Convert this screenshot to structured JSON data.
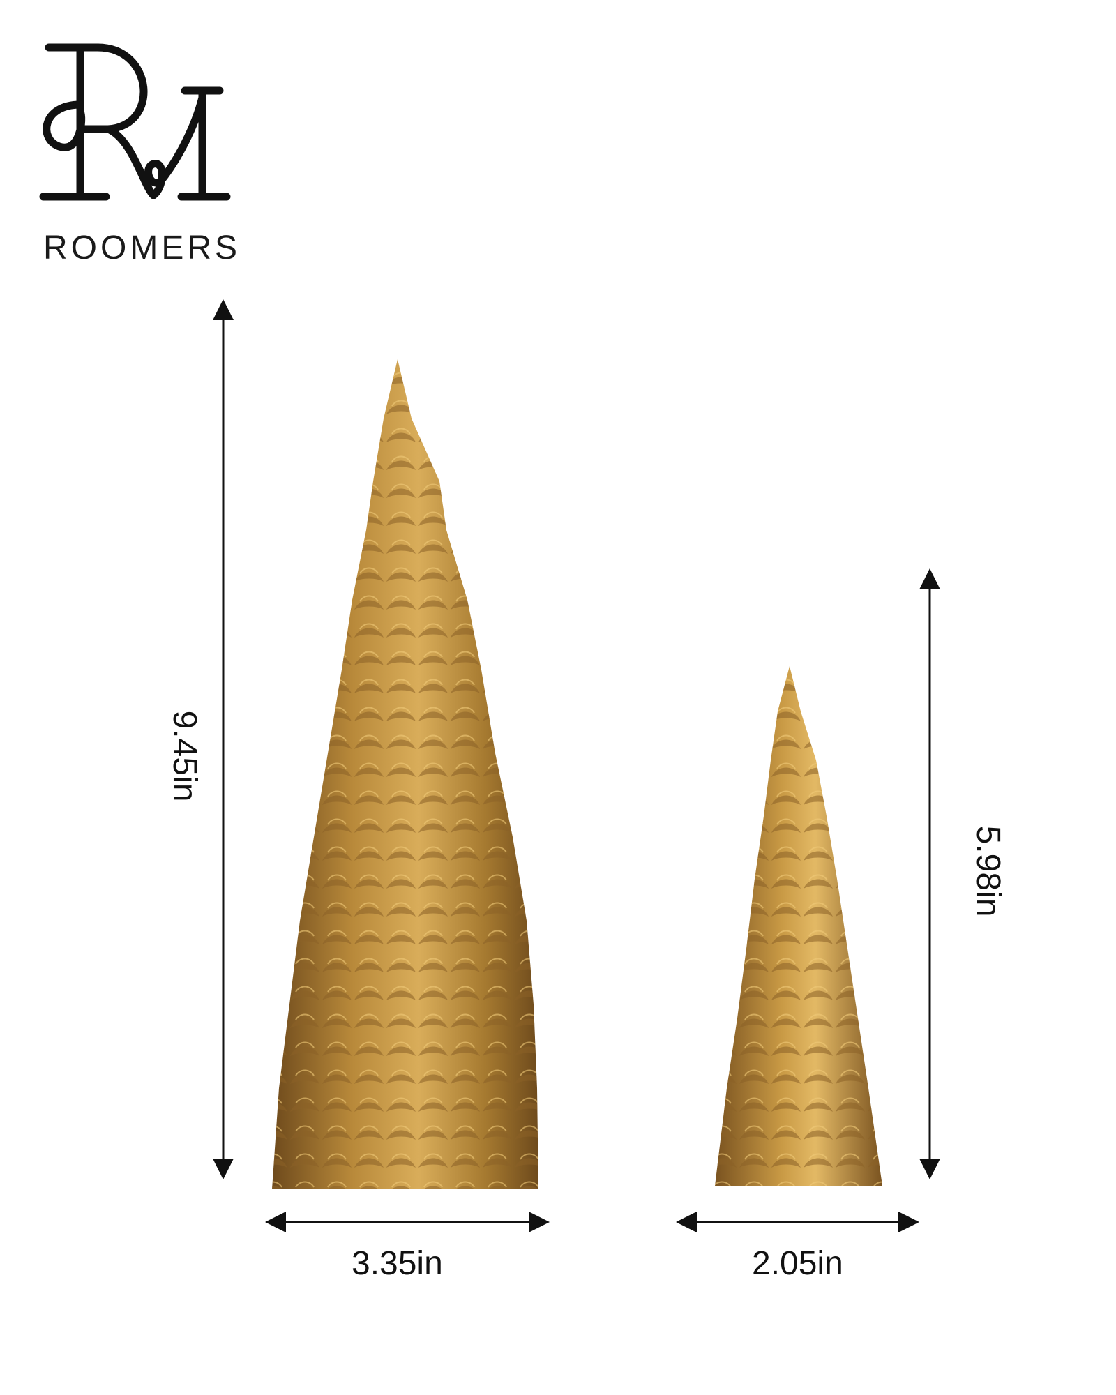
{
  "brand": {
    "monogram": "RM",
    "name": "ROOMERS"
  },
  "products": [
    {
      "name": "large-tree",
      "height": "9.45in",
      "width": "3.35in"
    },
    {
      "name": "small-tree",
      "height": "5.98in",
      "width": "2.05in"
    }
  ],
  "colors": {
    "background": "#ffffff",
    "gold": "#b8893a",
    "gold_dark": "#7a5320",
    "gold_light": "#e0b661",
    "ink": "#111111"
  }
}
